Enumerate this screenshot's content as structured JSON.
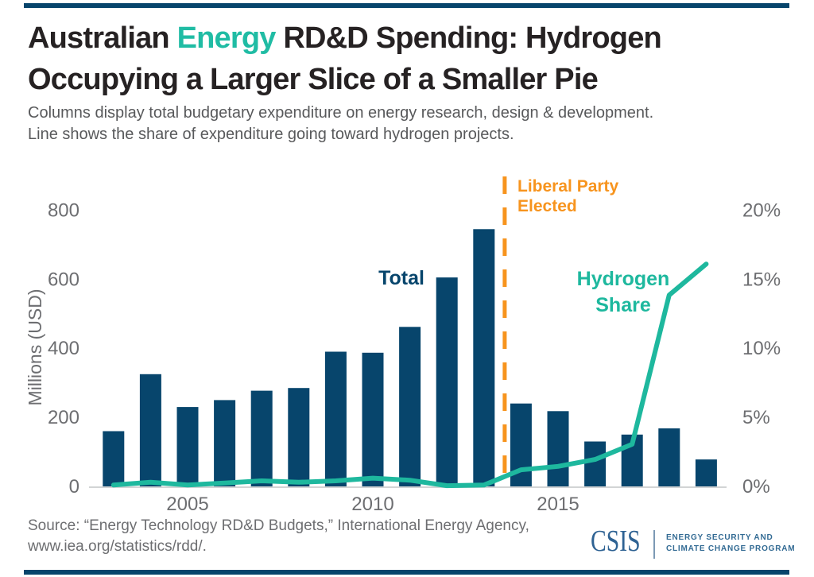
{
  "header": {
    "title_line1_part1": "Australian ",
    "title_line1_highlight": "Energy",
    "title_line1_part2": " RD&D Spending: Hydrogen",
    "title_line2": "Occupying a Larger Slice of a Smaller Pie",
    "subtitle_line1": "Columns display total budgetary expenditure on energy research, design & development.",
    "subtitle_line2": "Line shows the share of expenditure going toward hydrogen projects."
  },
  "chart_data": {
    "type": "bar",
    "subtype": "combo-bar-line",
    "title": "Australian Energy RD&D Spending: Hydrogen Occupying a Larger Slice of a Smaller Pie",
    "categories": [
      2003,
      2004,
      2005,
      2006,
      2007,
      2008,
      2009,
      2010,
      2011,
      2012,
      2013,
      2014,
      2015,
      2016,
      2017,
      2018,
      2019
    ],
    "series": [
      {
        "name": "Total",
        "kind": "bar",
        "axis": "left",
        "unit": "USD millions",
        "color": "#07456C",
        "values": [
          160,
          325,
          230,
          250,
          277,
          285,
          390,
          387,
          462,
          605,
          745,
          240,
          218,
          130,
          150,
          168,
          78
        ]
      },
      {
        "name": "Hydrogen Share",
        "kind": "line",
        "axis": "right",
        "unit": "percent",
        "color": "#1EB89E",
        "values": [
          0.1,
          0.3,
          0.1,
          0.25,
          0.4,
          0.3,
          0.4,
          0.6,
          0.45,
          0.05,
          0.1,
          1.2,
          1.45,
          1.95,
          3.05,
          13.85,
          16.1
        ]
      }
    ],
    "ylabel_left": "Millions (USD)",
    "left_axis": {
      "ticks": [
        800,
        600,
        400,
        200,
        0
      ],
      "range": [
        0,
        800
      ]
    },
    "right_axis": {
      "tick_labels": [
        "20%",
        "15%",
        "10%",
        "5%",
        "0%"
      ],
      "tick_values": [
        20,
        15,
        10,
        5,
        0
      ],
      "range": [
        0,
        20
      ]
    },
    "x_axis": {
      "tick_labels": [
        "2005",
        "2010",
        "2015"
      ],
      "tick_years": [
        2005,
        2010,
        2015
      ]
    },
    "grid": "off",
    "legend": "inline-labels",
    "inline_labels": {
      "bar_label": "Total",
      "line_label_line1": "Hydrogen",
      "line_label_line2": "Share"
    },
    "annotation": {
      "label_line1": "Liberal Party",
      "label_line2": "Elected",
      "position_year": 2013.56,
      "color": "#F7941E"
    }
  },
  "footer": {
    "source_line1": "Source: “Energy Technology RD&D Budgets,” International Energy Agency,",
    "source_line2": "www.iea.org/statistics/rdd/.",
    "logo": {
      "wordmark": "CSIS",
      "program_line1": "ENERGY SECURITY AND",
      "program_line2": "CLIMATE CHANGE PROGRAM"
    }
  },
  "colors": {
    "navy": "#07456C",
    "teal": "#1EB89E",
    "orange": "#F7941E",
    "title_black": "#262223",
    "subtitle_gray": "#58595B",
    "axis_text_gray": "#6D6E71",
    "axis_line_gray": "#D2D4D5",
    "csis_blue": "#2E6293"
  }
}
